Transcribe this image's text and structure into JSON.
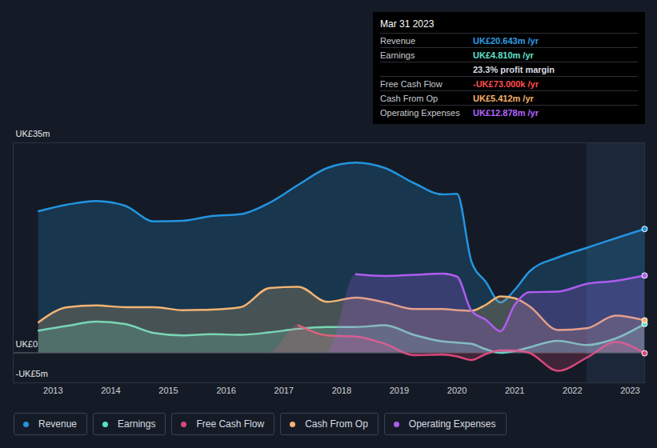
{
  "chart_data": {
    "type": "area",
    "x": [
      2012.75,
      2013.25,
      2013.75,
      2014.25,
      2014.75,
      2015.25,
      2015.75,
      2016.25,
      2016.75,
      2017.25,
      2017.75,
      2018.25,
      2018.75,
      2019.25,
      2019.75,
      2020.0,
      2020.25,
      2020.5,
      2020.75,
      2021.0,
      2021.25,
      2021.75,
      2022.25,
      2022.75,
      2023.25
    ],
    "series": [
      {
        "name": "Revenue",
        "color": "#2394df",
        "values": [
          23.6,
          24.7,
          25.3,
          24.5,
          21.9,
          22.0,
          22.8,
          23.1,
          25.0,
          28.0,
          30.8,
          31.7,
          30.8,
          28.3,
          26.4,
          26.5,
          15.2,
          11.8,
          8.4,
          10.5,
          13.5,
          15.9,
          17.5,
          19.1,
          20.643
        ]
      },
      {
        "name": "Earnings",
        "color": "#58dfc8",
        "values": [
          3.7,
          4.5,
          5.2,
          4.8,
          3.3,
          2.9,
          3.1,
          3.0,
          3.4,
          4.0,
          4.3,
          4.3,
          4.6,
          3.0,
          1.9,
          1.7,
          1.5,
          0.6,
          0.0,
          0.3,
          0.9,
          2.0,
          1.3,
          2.4,
          4.81
        ]
      },
      {
        "name": "Free Cash Flow",
        "color": "#d9487c",
        "values": [
          null,
          null,
          null,
          null,
          null,
          null,
          null,
          null,
          null,
          4.6,
          2.9,
          2.7,
          1.5,
          -0.4,
          -0.3,
          -0.6,
          -1.2,
          -0.2,
          0.4,
          0.4,
          0.0,
          -3.0,
          -0.8,
          1.8,
          -0.073
        ]
      },
      {
        "name": "Cash From Op",
        "color": "#f3b473",
        "values": [
          5.1,
          7.6,
          7.9,
          7.6,
          7.6,
          7.1,
          7.2,
          7.6,
          10.8,
          11.0,
          8.5,
          9.2,
          8.4,
          7.3,
          7.3,
          7.1,
          7.0,
          8.0,
          9.4,
          9.1,
          7.8,
          3.8,
          4.1,
          6.2,
          5.412
        ]
      },
      {
        "name": "Operating Expenses",
        "color": "#b05cf0",
        "values": [
          null,
          null,
          null,
          null,
          null,
          null,
          null,
          null,
          null,
          null,
          null,
          13.1,
          12.8,
          13.0,
          13.2,
          12.7,
          7.0,
          5.5,
          3.6,
          8.0,
          10.1,
          10.2,
          11.5,
          12.0,
          12.878
        ]
      }
    ],
    "xlim": [
      2012.31,
      2023.25
    ],
    "xticks": [
      2013,
      2014,
      2015,
      2016,
      2017,
      2018,
      2019,
      2020,
      2021,
      2022,
      2023
    ],
    "ylim": [
      -5,
      35
    ],
    "yticks": [
      {
        "value": -5,
        "label": "-UK£5m"
      },
      {
        "value": 0,
        "label": "UK£0"
      },
      {
        "value": 35,
        "label": "UK£35m"
      }
    ],
    "grid": true,
    "shaded_x": [
      2022.25,
      2023.25
    ],
    "legend": "bottom-left",
    "annotations": {
      "date": "Mar 31 2023",
      "rows": [
        {
          "label": "Revenue",
          "value": "UK£20.643m /yr",
          "color": "#2d9fe6"
        },
        {
          "label": "Earnings",
          "value": "UK£4.810m /yr",
          "color": "#5fe3cc"
        },
        {
          "value": "23.3% profit margin",
          "color": "#d8dbe0"
        },
        {
          "label": "Free Cash Flow",
          "value": "-UK£73.000k /yr",
          "color": "#ff4d4d"
        },
        {
          "label": "Cash From Op",
          "value": "UK£5.412m /yr",
          "color": "#f6b26b"
        },
        {
          "label": "Operating Expenses",
          "value": "UK£12.878m /yr",
          "color": "#b366ff"
        }
      ]
    }
  }
}
